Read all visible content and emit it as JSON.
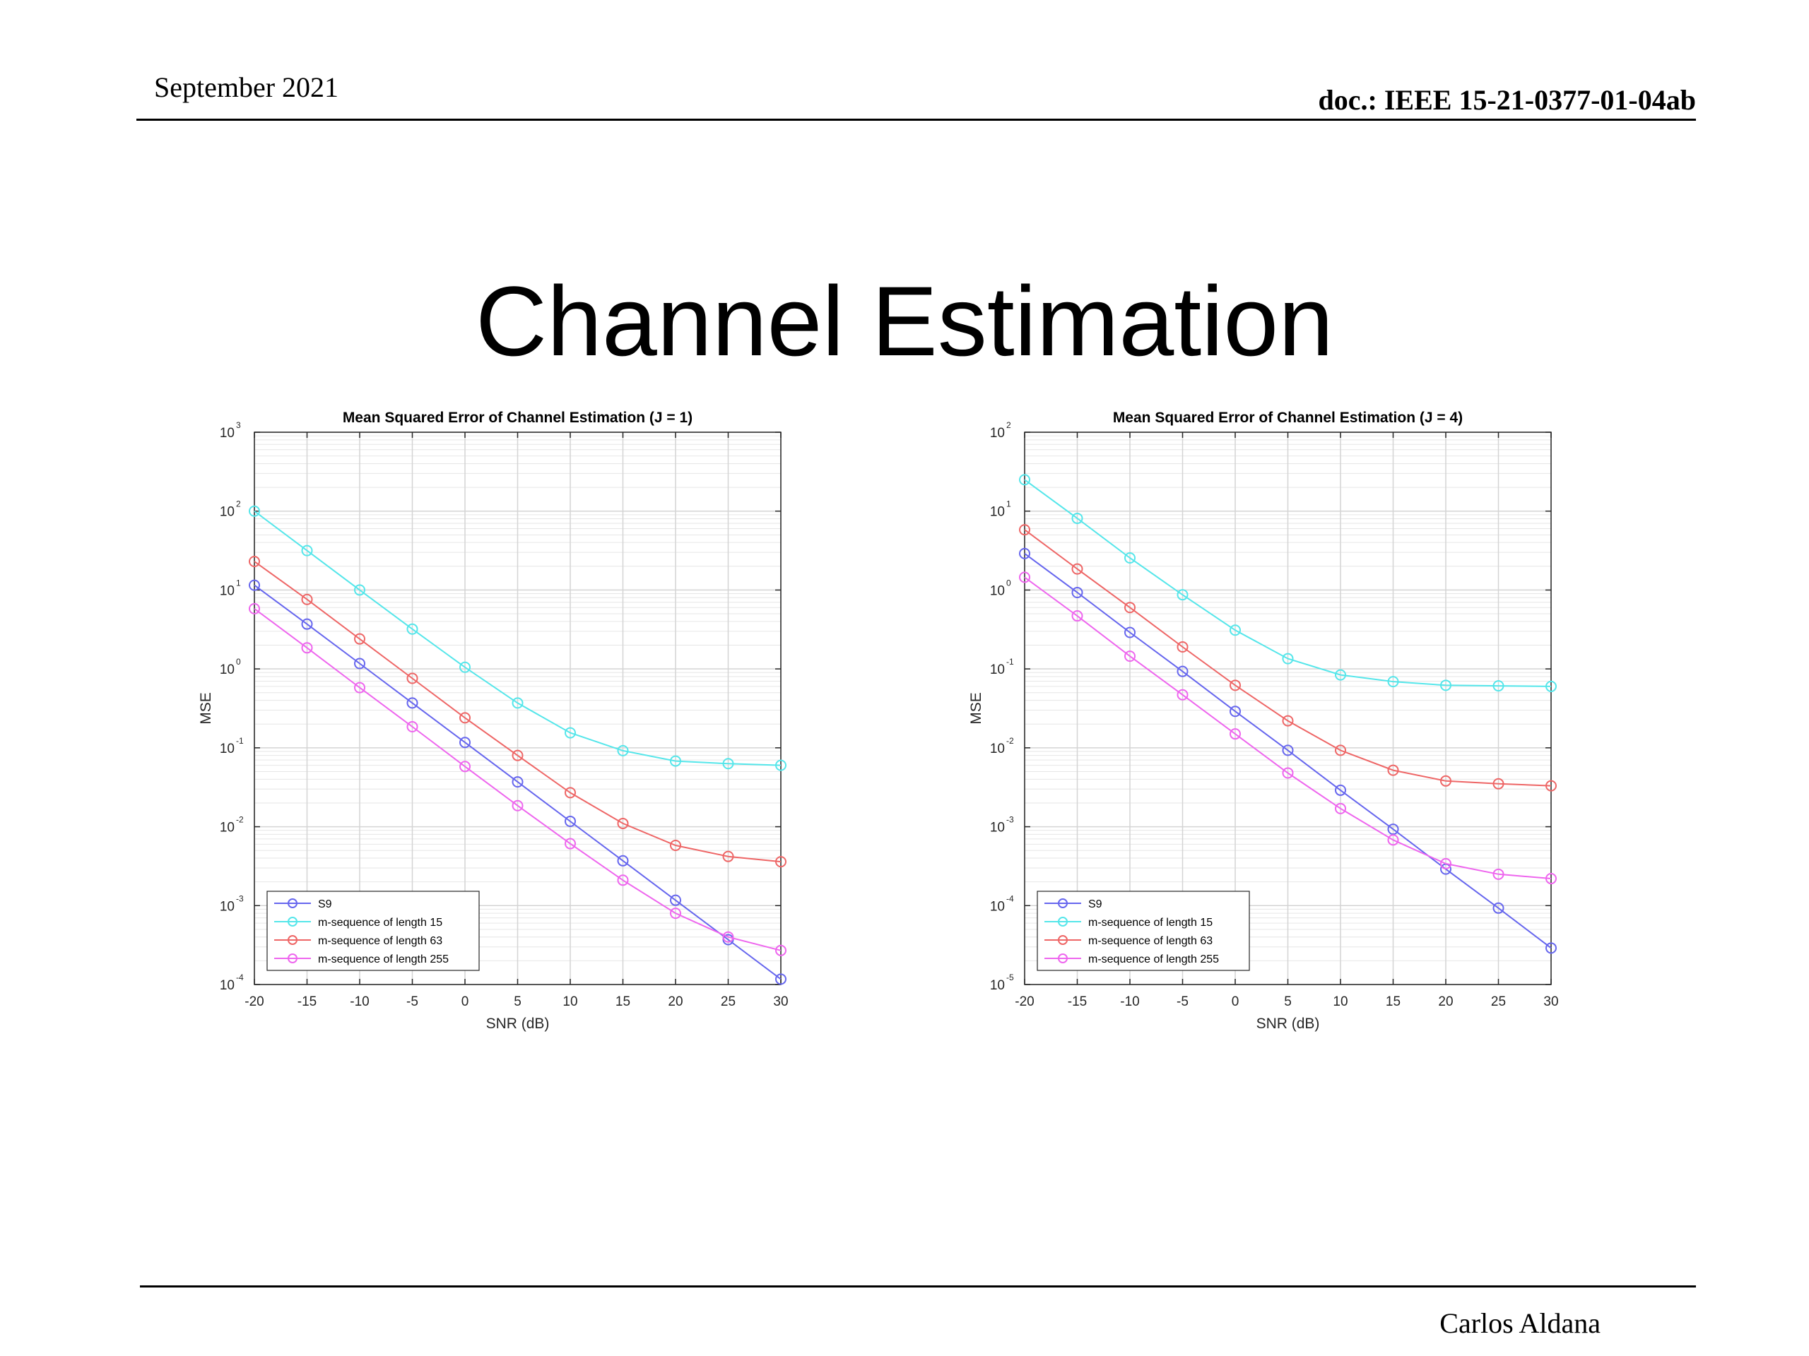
{
  "header": {
    "date": "September 2021",
    "doc_id": "doc.: IEEE 15-21-0377-01-04ab"
  },
  "slide": {
    "title": "Channel Estimation"
  },
  "footer": {
    "author": "Carlos Aldana"
  },
  "chart_data": [
    {
      "type": "line",
      "title": "Mean Squared Error of Channel Estimation (J = 1)",
      "xlabel": "SNR (dB)",
      "ylabel": "MSE",
      "yscale": "log",
      "xlim": [
        -20,
        30
      ],
      "ylim": [
        0.0001,
        1000
      ],
      "x_ticks": [
        -20,
        -15,
        -10,
        -5,
        0,
        5,
        10,
        15,
        20,
        25,
        30
      ],
      "y_ticks": [
        {
          "base": "10",
          "exp": "-4",
          "value": 0.0001
        },
        {
          "base": "10",
          "exp": "-3",
          "value": 0.001
        },
        {
          "base": "10",
          "exp": "-2",
          "value": 0.01
        },
        {
          "base": "10",
          "exp": "-1",
          "value": 0.1
        },
        {
          "base": "10",
          "exp": "0",
          "value": 1
        },
        {
          "base": "10",
          "exp": "1",
          "value": 10
        },
        {
          "base": "10",
          "exp": "2",
          "value": 100
        },
        {
          "base": "10",
          "exp": "3",
          "value": 1000
        }
      ],
      "grid": true,
      "legend_position": "bottom-left",
      "x": [
        -20,
        -15,
        -10,
        -5,
        0,
        5,
        10,
        15,
        20,
        25,
        30
      ],
      "series": [
        {
          "name": "S9",
          "color": "#6666ee",
          "values": [
            11.5,
            3.7,
            1.17,
            0.37,
            0.117,
            0.037,
            0.0117,
            0.0037,
            0.00117,
            0.00037,
            0.000117
          ]
        },
        {
          "name": "m-sequence of length 15",
          "color": "#55e6ea",
          "values": [
            100,
            31.6,
            10,
            3.2,
            1.05,
            0.37,
            0.155,
            0.092,
            0.068,
            0.063,
            0.06
          ]
        },
        {
          "name": "m-sequence of length 63",
          "color": "#ee6666",
          "values": [
            23,
            7.6,
            2.4,
            0.76,
            0.24,
            0.08,
            0.027,
            0.011,
            0.0058,
            0.0042,
            0.0036
          ]
        },
        {
          "name": "m-sequence of length 255",
          "color": "#ee66ee",
          "values": [
            5.8,
            1.85,
            0.58,
            0.185,
            0.058,
            0.0185,
            0.0061,
            0.0021,
            0.0008,
            0.0004,
            0.00027
          ]
        }
      ]
    },
    {
      "type": "line",
      "title": "Mean Squared Error of Channel Estimation (J = 4)",
      "xlabel": "SNR (dB)",
      "ylabel": "MSE",
      "yscale": "log",
      "xlim": [
        -20,
        30
      ],
      "ylim": [
        1e-05,
        100
      ],
      "x_ticks": [
        -20,
        -15,
        -10,
        -5,
        0,
        5,
        10,
        15,
        20,
        25,
        30
      ],
      "y_ticks": [
        {
          "base": "10",
          "exp": "-5",
          "value": 1e-05
        },
        {
          "base": "10",
          "exp": "-4",
          "value": 0.0001
        },
        {
          "base": "10",
          "exp": "-3",
          "value": 0.001
        },
        {
          "base": "10",
          "exp": "-2",
          "value": 0.01
        },
        {
          "base": "10",
          "exp": "-1",
          "value": 0.1
        },
        {
          "base": "10",
          "exp": "0",
          "value": 1
        },
        {
          "base": "10",
          "exp": "1",
          "value": 10
        },
        {
          "base": "10",
          "exp": "2",
          "value": 100
        }
      ],
      "grid": true,
      "legend_position": "bottom-left",
      "x": [
        -20,
        -15,
        -10,
        -5,
        0,
        5,
        10,
        15,
        20,
        25,
        30
      ],
      "series": [
        {
          "name": "S9",
          "color": "#6666ee",
          "values": [
            2.9,
            0.93,
            0.29,
            0.093,
            0.029,
            0.0093,
            0.0029,
            0.00093,
            0.00029,
            9.3e-05,
            2.9e-05
          ]
        },
        {
          "name": "m-sequence of length 15",
          "color": "#55e6ea",
          "values": [
            25,
            8.1,
            2.55,
            0.87,
            0.31,
            0.135,
            0.084,
            0.069,
            0.062,
            0.061,
            0.06
          ]
        },
        {
          "name": "m-sequence of length 63",
          "color": "#ee6666",
          "values": [
            5.8,
            1.85,
            0.6,
            0.19,
            0.062,
            0.022,
            0.0093,
            0.0052,
            0.0038,
            0.0035,
            0.0033
          ]
        },
        {
          "name": "m-sequence of length 255",
          "color": "#ee66ee",
          "values": [
            1.45,
            0.47,
            0.145,
            0.047,
            0.015,
            0.0048,
            0.0017,
            0.00068,
            0.00034,
            0.00025,
            0.00022
          ]
        }
      ]
    }
  ]
}
